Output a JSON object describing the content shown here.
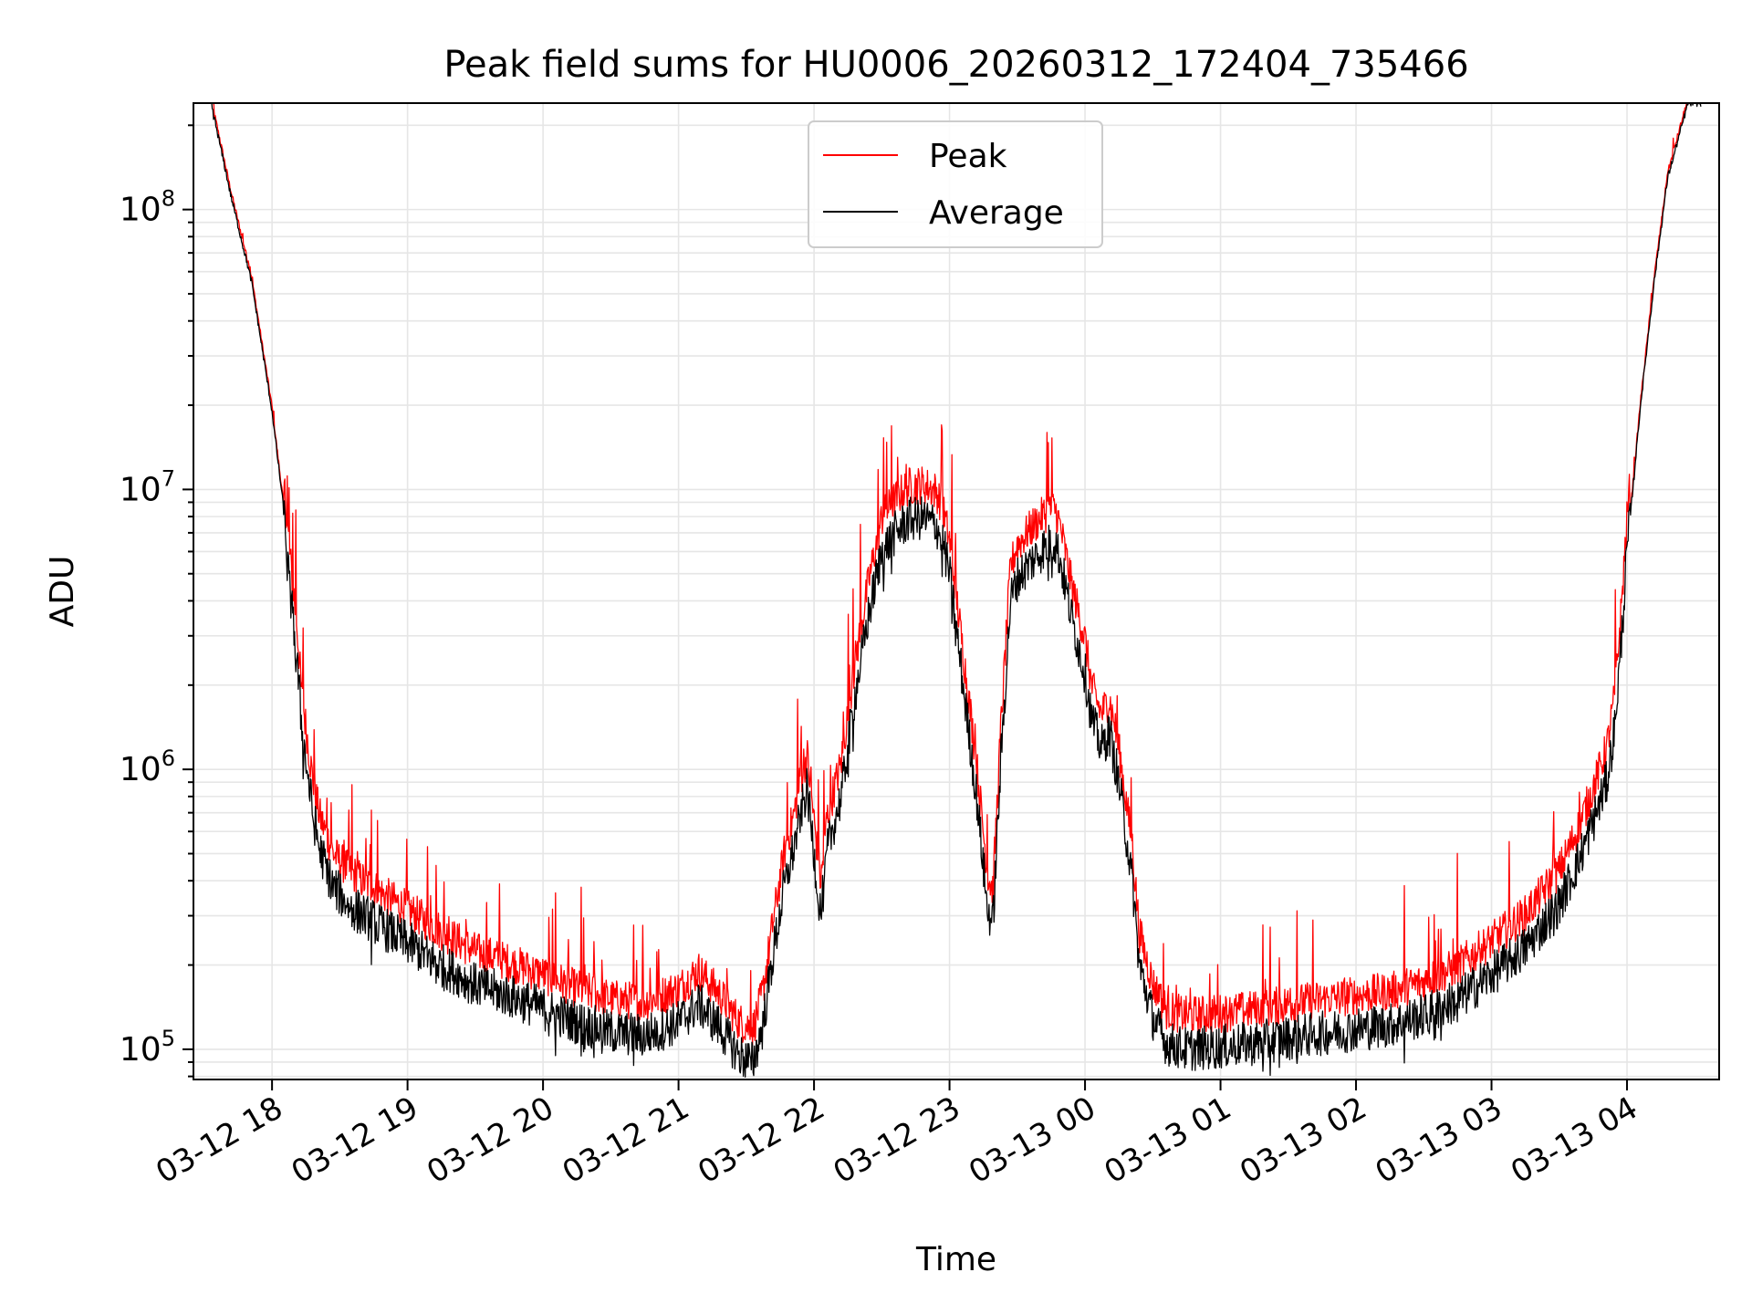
{
  "chart_data": {
    "type": "line",
    "title": "Peak field sums for HU0006_20260312_172404_735466",
    "xlabel": "Time",
    "ylabel": "ADU",
    "yscale": "log",
    "ylim": [
      78000,
      240000000
    ],
    "xlim_hours": [
      17.42,
      28.68
    ],
    "x_tick_labels": [
      "03-12 18",
      "03-12 19",
      "03-12 20",
      "03-12 21",
      "03-12 22",
      "03-12 23",
      "03-13 00",
      "03-13 01",
      "03-13 02",
      "03-13 03",
      "03-13 04"
    ],
    "x_tick_hours": [
      18,
      19,
      20,
      21,
      22,
      23,
      24,
      25,
      26,
      27,
      28
    ],
    "y_tick_labels": [
      {
        "base": "10",
        "exp": "5"
      },
      {
        "base": "10",
        "exp": "6"
      },
      {
        "base": "10",
        "exp": "7"
      },
      {
        "base": "10",
        "exp": "8"
      }
    ],
    "y_tick_values": [
      100000,
      1000000,
      10000000,
      100000000
    ],
    "grid": true,
    "legend_position": "upper-center",
    "series": [
      {
        "name": "Peak",
        "color": "#ff0000",
        "noise_up": 0.12,
        "noise_amp": 0.07
      },
      {
        "name": "Average",
        "color": "#000000",
        "noise_up": 0.0,
        "noise_amp": 0.08
      }
    ],
    "baseline": {
      "x_hours": [
        17.55,
        17.7,
        17.85,
        18.0,
        18.08,
        18.13,
        18.18,
        18.22,
        18.27,
        18.3,
        18.35,
        18.45,
        18.6,
        18.8,
        19.0,
        19.25,
        19.5,
        19.75,
        20.0,
        20.25,
        20.5,
        20.75,
        21.0,
        21.15,
        21.3,
        21.45,
        21.55,
        21.62,
        21.7,
        21.78,
        21.85,
        21.9,
        21.95,
        22.0,
        22.05,
        22.1,
        22.15,
        22.2,
        22.3,
        22.4,
        22.5,
        22.6,
        22.7,
        22.8,
        22.9,
        22.95,
        23.0,
        23.1,
        23.2,
        23.28,
        23.32,
        23.38,
        23.45,
        23.5,
        23.6,
        23.7,
        23.78,
        23.82,
        23.9,
        24.0,
        24.05,
        24.12,
        24.18,
        24.25,
        24.3,
        24.35,
        24.4,
        24.5,
        24.6,
        24.75,
        25.0,
        25.25,
        25.5,
        25.75,
        26.0,
        26.25,
        26.5,
        26.75,
        27.0,
        27.25,
        27.5,
        27.65,
        27.75,
        27.85,
        27.9,
        27.95,
        28.0,
        28.1,
        28.2,
        28.3,
        28.45,
        28.55
      ],
      "y_adu": [
        240000000,
        110000000,
        55000000,
        19000000,
        9000000,
        4500000,
        2600000,
        1400000,
        900000,
        700000,
        520000,
        380000,
        320000,
        275000,
        240000,
        200000,
        170000,
        155000,
        140000,
        125000,
        115000,
        112000,
        125000,
        145000,
        120000,
        95000,
        90000,
        120000,
        220000,
        380000,
        520000,
        700000,
        850000,
        500000,
        300000,
        520000,
        650000,
        800000,
        1800000,
        3500000,
        6000000,
        7000000,
        7800000,
        7900000,
        7500000,
        6500000,
        5000000,
        2000000,
        800000,
        320000,
        280000,
        1100000,
        4000000,
        4800000,
        5500000,
        6200000,
        6500000,
        5500000,
        3500000,
        2200000,
        1500000,
        1200000,
        1350000,
        900000,
        600000,
        400000,
        200000,
        130000,
        105000,
        100000,
        102000,
        105000,
        110000,
        114000,
        118000,
        122000,
        132000,
        150000,
        185000,
        230000,
        330000,
        480000,
        650000,
        900000,
        1300000,
        2500000,
        6000000,
        20000000,
        55000000,
        130000000,
        240000000,
        240000000
      ]
    }
  }
}
